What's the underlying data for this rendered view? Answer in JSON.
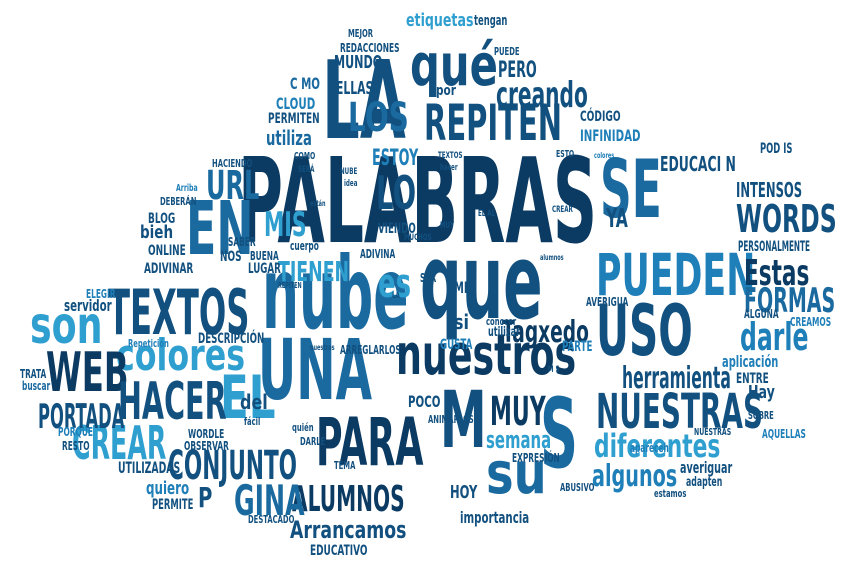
{
  "palette": {
    "navy": "#0b3a62",
    "dark": "#12507f",
    "mid": "#1a6aa0",
    "blue": "#1f7fb8",
    "light": "#2f9fd0",
    "cyan": "#3bb3dc"
  },
  "words": {
    "palabras": "PALABRAS",
    "la": "LA",
    "que_top": "qué",
    "los": "LOS",
    "repiten": "REPITEN",
    "en": "EN",
    "se": "SE",
    "nube": "nube",
    "que": "que",
    "textos": "TEXTOS",
    "pueden": "PUEDEN",
    "uso": "USO",
    "son": "son",
    "colores": "colores",
    "una": "UNA",
    "el": "EL",
    "nuestros": "nuestros",
    "web": "WEB",
    "hacer": "HACER",
    "para": "PARA",
    "m": "M",
    "s": "S",
    "su": "su",
    "muy": "MUY",
    "nuestras": "NUESTRAS",
    "crear": "CREAR",
    "conjunto": "CONJUNTO",
    "alumnos": "ALUMNOS",
    "gina": "GINA",
    "arrancamos": "Arrancamos",
    "words": "WORDS",
    "estas": "Estas",
    "formas": "FORMAS",
    "darle": "darle",
    "tagxedo": "Tagxedo",
    "herramienta": "herramienta",
    "diferentes": "diferentes",
    "algunos": "algunos",
    "semana": "semana",
    "portada": "PORTADA",
    "url": "URL",
    "mis": "MIS",
    "tienen": "TIENEN",
    "lo": "LO",
    "es": "es",
    "creando": "creando",
    "pero": "PERO",
    "ellas": "ELLAS",
    "mundo": "MUNDO",
    "por": "por",
    "estoy": "ESTOY",
    "ya": "YA",
    "intensos": "INTENSOS",
    "educaci_n": "EDUCACI N",
    "codigo": "CÓDIGO",
    "infinidad": "INFINIDAD",
    "cloud": "CLOUD",
    "c_mo": "C MO",
    "permiten": "PERMITEN",
    "utiliza": "utiliza",
    "etiquetas": "etiquetas",
    "tengan": "tengan",
    "redacciones": "REDACCIONES",
    "mejor": "MEJOR",
    "puede": "PUEDE",
    "blog": "BLOG",
    "bien": "bieh",
    "online": "ONLINE",
    "saber": "SABER",
    "nos": "NOS",
    "adivinar": "ADIVINAR",
    "servidor": "servidor",
    "descripcion": "DESCRIPCIÓN",
    "si": "si",
    "hoy": "HOY",
    "p": "P",
    "quiero": "quiero",
    "poco": "POCO",
    "importancia": "importancia",
    "educativo": "EDUCATIVO",
    "utilizadas": "UTILIZADAS",
    "permite": "PERMITE",
    "destacado": "DESTACADO",
    "hay": "Hay",
    "entre": "ENTRE",
    "aplicacion": "aplicación",
    "averiguar": "averiguar",
    "adapten": "adapten",
    "estamos": "estamos",
    "sobre": "SOBRE",
    "aquellas": "AQUELLAS",
    "nuestras_small": "NUESTRAS",
    "apareceh": "apareceh",
    "personalmente": "PERSONALMENTE",
    "alguna": "ALGUNA",
    "creamos": "CREAMOS",
    "averigua": "AVERIGUA",
    "pod_is": "POD IS",
    "trata": "TRATA",
    "buscar": "buscar",
    "porque": "PORQUE",
    "resto": "RESTO",
    "elegir": "ELEGIR",
    "repeticion": "Repetición",
    "wordle": "WORDLE",
    "observar": "OBSERVAR",
    "del": "del",
    "facil": "fácil",
    "quien": "quién",
    "darle_small": "DARLE",
    "animarlos": "ANIMARLOS",
    "arreglarlos": "ARREGLARLOS",
    "gusta": "GUSTA",
    "parte": "PARTE",
    "conocer": "conocer",
    "utilizar": "utilizar",
    "expresion": "EXPRESIÓN",
    "abusivo": "ABUSIVO",
    "tema": "TEMA",
    "buena": "BUENA",
    "lugar": "LUGAR",
    "cuerpo": "cuerpo",
    "adivina": "ADIVINA",
    "viendo": "VIENDO",
    "muchos": "MUCHOS",
    "ser": "SER",
    "mi": "MI",
    "la_small": "LA",
    "haciendo": "HACIENDO",
    "como": "COMO",
    "nube_small": "NUBE",
    "idea": "idea",
    "textos_small": "TEXTOS",
    "hacer_small": "hacer",
    "esto": "ESTO",
    "colores_small": "colores",
    "arriba": "Arriba",
    "deberan": "DEBERÁN",
    "sera": "SERÁ",
    "estan": "están",
    "crear_small": "CREAR",
    "el_al": "EL AL",
    "muy_small": "MUY",
    "alumnos_small": "alumnos",
    "repiten_small": "REPITEN",
    "nuestros_small": "nuestros",
    "ms": "M S"
  }
}
